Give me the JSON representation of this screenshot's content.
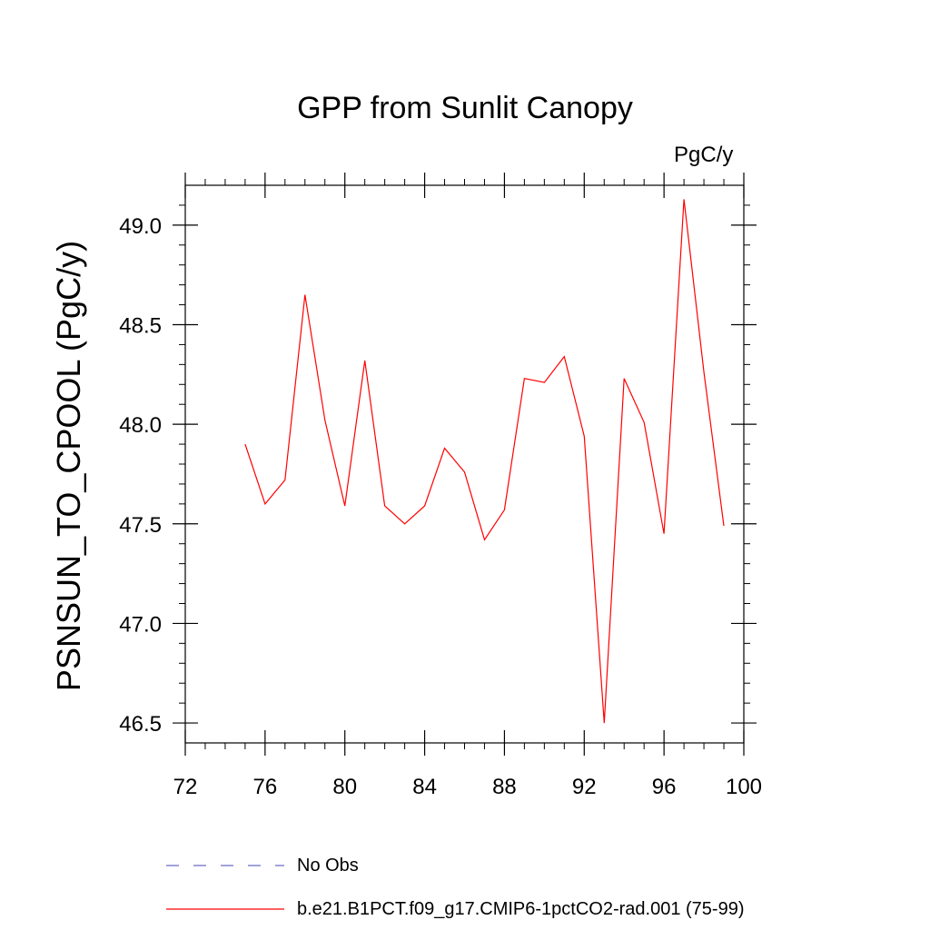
{
  "chart_data": {
    "type": "line",
    "title": "GPP from Sunlit Canopy",
    "units_label": "PgC/y",
    "ylabel": "PSNSUN_TO_CPOOL  (PgC/y)",
    "xlabel": "",
    "xlim": [
      72,
      100
    ],
    "ylim": [
      46.4,
      49.2
    ],
    "xticks": [
      72,
      76,
      80,
      84,
      88,
      92,
      96,
      100
    ],
    "xtick_labels": [
      "72",
      "76",
      "80",
      "84",
      "88",
      "92",
      "96",
      "100"
    ],
    "yticks": [
      46.5,
      47.0,
      47.5,
      48.0,
      48.5,
      49.0
    ],
    "ytick_labels": [
      "46.5",
      "47.0",
      "47.5",
      "48.0",
      "48.5",
      "49.0"
    ],
    "grid": false,
    "legend_position": "bottom",
    "series": [
      {
        "name": "b.e21.B1PCT.f09_g17.CMIP6-1pctCO2-rad.001 (75-99)",
        "color": "#ff0000",
        "style": "solid",
        "x": [
          75,
          76,
          77,
          78,
          79,
          80,
          81,
          82,
          83,
          84,
          85,
          86,
          87,
          88,
          89,
          90,
          91,
          92,
          93,
          94,
          95,
          96,
          97,
          98,
          99
        ],
        "y": [
          47.9,
          47.6,
          47.72,
          48.65,
          48.02,
          47.59,
          48.32,
          47.59,
          47.5,
          47.59,
          47.88,
          47.76,
          47.42,
          47.57,
          48.23,
          48.21,
          48.34,
          47.94,
          46.5,
          48.23,
          48.01,
          47.45,
          49.13,
          48.26,
          47.49
        ]
      }
    ],
    "legend": [
      {
        "label": "No Obs",
        "color": "#6b6bc8",
        "style": "dashed"
      },
      {
        "label": "b.e21.B1PCT.f09_g17.CMIP6-1pctCO2-rad.001 (75-99)",
        "color": "#ff0000",
        "style": "solid"
      }
    ]
  }
}
